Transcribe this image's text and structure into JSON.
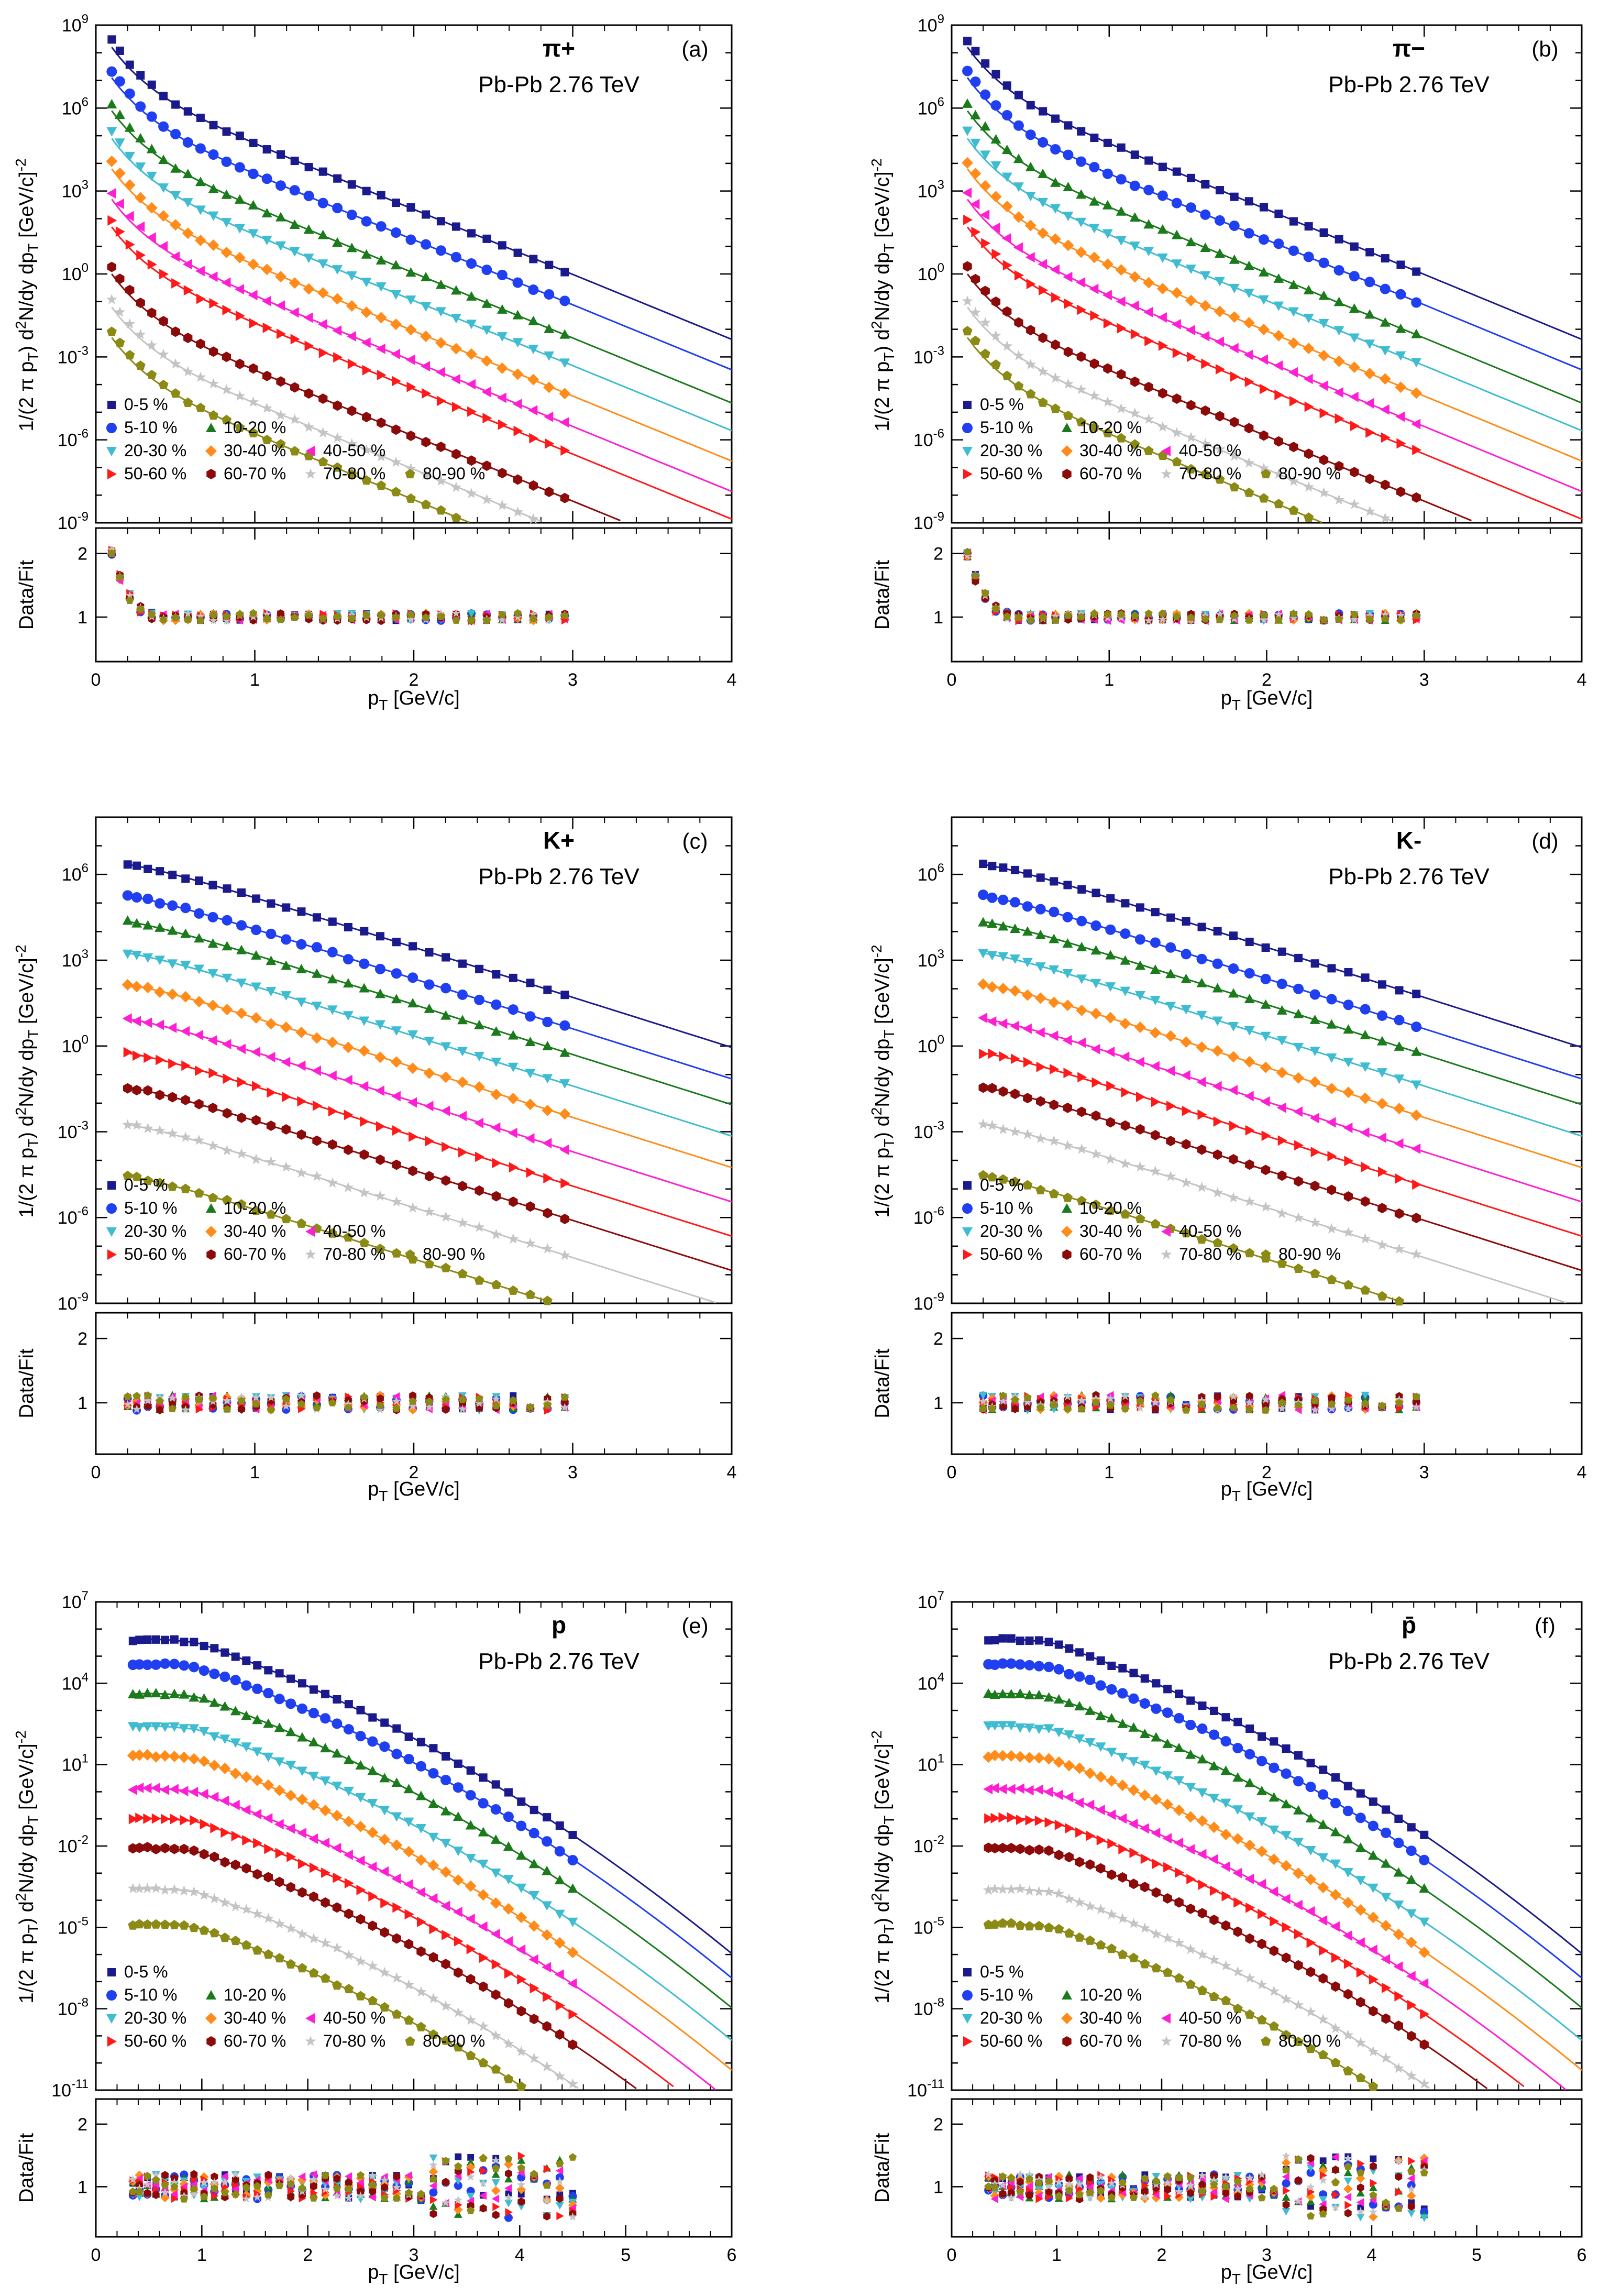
{
  "figure": {
    "collision": "Pb-Pb 2.76 TeV",
    "legend": [
      {
        "label": "0-5 %",
        "color": "#1a1a8c",
        "marker": "square"
      },
      {
        "label": "5-10 %",
        "color": "#1f3ff0",
        "marker": "circle"
      },
      {
        "label": "10-20 %",
        "color": "#1b7a1b",
        "marker": "triangle-up"
      },
      {
        "label": "20-30 %",
        "color": "#3fbcd0",
        "marker": "triangle-down"
      },
      {
        "label": "30-40 %",
        "color": "#ff8c1a",
        "marker": "diamond"
      },
      {
        "label": "40-50 %",
        "color": "#ff1fd2",
        "marker": "triangle-left"
      },
      {
        "label": "50-60 %",
        "color": "#ff1a1a",
        "marker": "triangle-right"
      },
      {
        "label": "60-70 %",
        "color": "#8b0a0a",
        "marker": "hexagon"
      },
      {
        "label": "70-80 %",
        "color": "#c4c4c4",
        "marker": "star"
      },
      {
        "label": "80-90 %",
        "color": "#8a8a14",
        "marker": "pentagon"
      }
    ],
    "ratio_ylabel": "Data/Fit",
    "ratio_yticks": [
      "1",
      "2"
    ],
    "spectrum_ylabel": "1/(2 π pT) d2N/dy dpT [GeV/c]-2"
  },
  "chart_data": [
    {
      "type": "scatter",
      "panel": "a",
      "particle": "π+",
      "xlabel": "pT [GeV/c]",
      "xlim": [
        0,
        4
      ],
      "xticks": [
        "0",
        "1",
        "2",
        "3",
        "4"
      ],
      "ylim_exp": [
        -9,
        9
      ],
      "ytick_exps": [
        -9,
        -6,
        -3,
        0,
        3,
        6,
        9
      ],
      "spectrum_model": {
        "kind": "pion",
        "start_log10": [
          8.2,
          7.1,
          5.9,
          4.9,
          3.8,
          2.7,
          1.7,
          0.0,
          -1.2,
          -2.3
        ],
        "slope_per_GeV": 2.35,
        "x_min": 0.1,
        "x_max": 2.95,
        "n_points": 34,
        "fit_x_max": 4
      },
      "ratio": {
        "ylim": [
          0.3,
          2.4
        ],
        "low_pt_peak": 2.0,
        "fluct": 0.06
      }
    },
    {
      "type": "scatter",
      "panel": "b",
      "particle": "π−",
      "xlabel": "pT [GeV/c]",
      "xlim": [
        0,
        4
      ],
      "xticks": [
        "0",
        "1",
        "2",
        "3",
        "4"
      ],
      "ylim_exp": [
        -9,
        9
      ],
      "ytick_exps": [
        -9,
        -6,
        -3,
        0,
        3,
        6,
        9
      ],
      "spectrum_model": {
        "kind": "pion",
        "start_log10": [
          8.2,
          7.1,
          5.9,
          4.9,
          3.8,
          2.7,
          1.7,
          0.0,
          -1.2,
          -2.3
        ],
        "slope_per_GeV": 2.35,
        "x_min": 0.1,
        "x_max": 2.95,
        "n_points": 34,
        "fit_x_max": 4
      },
      "ratio": {
        "ylim": [
          0.3,
          2.4
        ],
        "low_pt_peak": 2.0,
        "fluct": 0.06
      }
    },
    {
      "type": "scatter",
      "panel": "c",
      "particle": "K+",
      "xlabel": "pT [GeV/c]",
      "xlim": [
        0,
        4
      ],
      "xticks": [
        "0",
        "1",
        "2",
        "3",
        "4"
      ],
      "ylim_exp": [
        -9,
        8
      ],
      "ytick_exps": [
        -9,
        -6,
        -3,
        0,
        3,
        6
      ],
      "spectrum_model": {
        "kind": "kaon",
        "start_log10": [
          6.6,
          5.5,
          4.6,
          3.5,
          2.4,
          1.2,
          0.0,
          -1.2,
          -2.5,
          -4.3
        ],
        "slope_per_GeV": 1.75,
        "x_min": 0.2,
        "x_max": 2.95,
        "n_points": 30,
        "fit_x_max": 4
      },
      "ratio": {
        "ylim": [
          0.2,
          2.4
        ],
        "low_pt_peak": 1.05,
        "fluct": 0.12
      }
    },
    {
      "type": "scatter",
      "panel": "d",
      "particle": "K-",
      "xlabel": "pT [GeV/c]",
      "xlim": [
        0,
        4
      ],
      "xticks": [
        "0",
        "1",
        "2",
        "3",
        "4"
      ],
      "ylim_exp": [
        -9,
        8
      ],
      "ytick_exps": [
        -9,
        -6,
        -3,
        0,
        3,
        6
      ],
      "spectrum_model": {
        "kind": "kaon",
        "start_log10": [
          6.6,
          5.5,
          4.6,
          3.5,
          2.4,
          1.2,
          0.0,
          -1.2,
          -2.5,
          -4.3
        ],
        "slope_per_GeV": 1.75,
        "x_min": 0.2,
        "x_max": 2.95,
        "n_points": 30,
        "fit_x_max": 4
      },
      "ratio": {
        "ylim": [
          0.2,
          2.4
        ],
        "low_pt_peak": 1.05,
        "fluct": 0.12
      }
    },
    {
      "type": "scatter",
      "panel": "e",
      "particle": "p",
      "xlabel": "pT [GeV/c]",
      "xlim": [
        0,
        6
      ],
      "xticks": [
        "0",
        "1",
        "2",
        "3",
        "4",
        "5",
        "6"
      ],
      "ylim_exp": [
        -11,
        7
      ],
      "ytick_exps": [
        -11,
        -8,
        -5,
        -2,
        1,
        4,
        7
      ],
      "spectrum_model": {
        "kind": "proton",
        "start_log10": [
          5.8,
          4.9,
          3.8,
          2.6,
          1.5,
          0.3,
          -0.8,
          -1.9,
          -3.4,
          -4.7
        ],
        "slope_per_GeV": 1.15,
        "x_min": 0.35,
        "x_max": 4.5,
        "n_points": 40,
        "fit_x_max": 6
      },
      "ratio": {
        "ylim": [
          0.2,
          2.4
        ],
        "low_pt_peak": 1.0,
        "fluct": 0.2
      }
    },
    {
      "type": "scatter",
      "panel": "f",
      "particle": "p̄",
      "xlabel": "pT [GeV/c]",
      "xlim": [
        0,
        6
      ],
      "xticks": [
        "0",
        "1",
        "2",
        "3",
        "4",
        "5",
        "6"
      ],
      "ylim_exp": [
        -11,
        7
      ],
      "ytick_exps": [
        -11,
        -8,
        -5,
        -2,
        1,
        4,
        7
      ],
      "spectrum_model": {
        "kind": "proton",
        "start_log10": [
          5.8,
          4.9,
          3.8,
          2.6,
          1.5,
          0.3,
          -0.8,
          -1.9,
          -3.4,
          -4.7
        ],
        "slope_per_GeV": 1.15,
        "x_min": 0.35,
        "x_max": 4.5,
        "n_points": 40,
        "fit_x_max": 6
      },
      "ratio": {
        "ylim": [
          0.2,
          2.4
        ],
        "low_pt_peak": 1.0,
        "fluct": 0.2
      }
    }
  ]
}
